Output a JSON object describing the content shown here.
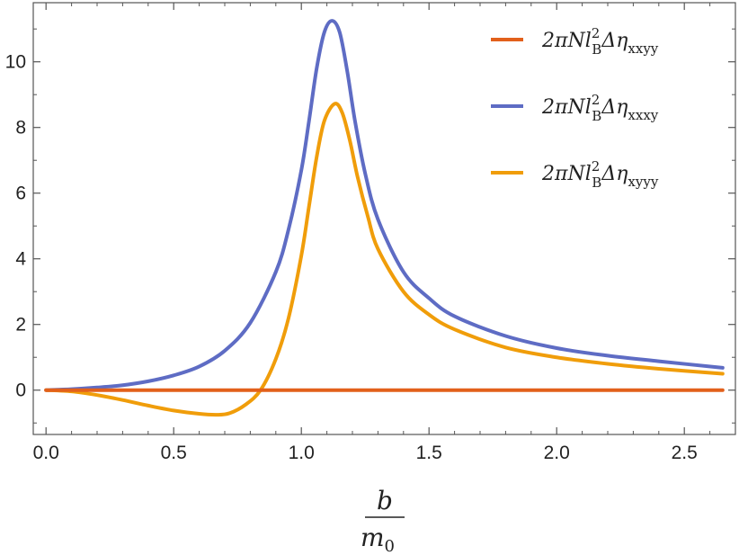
{
  "chart_data": {
    "type": "line",
    "xlabel": {
      "numerator": "b",
      "denominator_base": "m",
      "denominator_sub": "0"
    },
    "ylabel": "",
    "xlim": [
      -0.05,
      2.7
    ],
    "ylim": [
      -1.35,
      11.8
    ],
    "x_ticks": [
      0.0,
      0.5,
      1.0,
      1.5,
      2.0,
      2.5
    ],
    "x_tick_labels": [
      "0.0",
      "0.5",
      "1.0",
      "1.5",
      "2.0",
      "2.5"
    ],
    "y_ticks": [
      0,
      2,
      4,
      6,
      8,
      10
    ],
    "y_tick_labels": [
      "0",
      "2",
      "4",
      "6",
      "8",
      "10"
    ],
    "grid": false,
    "legend_position": "top-right",
    "series": [
      {
        "name": "2πNl_B^2Δη_xxyy",
        "legend": {
          "main": "2πNl",
          "sup": "2",
          "sub_B": "B",
          "eta": "Δη",
          "sub": "xxyy"
        },
        "color": "#e2601b",
        "x": [
          0.0,
          0.5,
          1.0,
          1.5,
          2.0,
          2.5,
          2.65
        ],
        "y": [
          0,
          0,
          0,
          0,
          0,
          0,
          0
        ]
      },
      {
        "name": "2πNl_B^2Δη_xxxy",
        "legend": {
          "main": "2πNl",
          "sup": "2",
          "sub_B": "B",
          "eta": "Δη",
          "sub": "xxxy"
        },
        "color": "#5e6cc4",
        "x": [
          0.0,
          0.1,
          0.2,
          0.3,
          0.4,
          0.5,
          0.6,
          0.7,
          0.8,
          0.9,
          0.95,
          1.0,
          1.03,
          1.06,
          1.09,
          1.12,
          1.15,
          1.18,
          1.21,
          1.25,
          1.3,
          1.4,
          1.5,
          1.6,
          1.8,
          2.0,
          2.2,
          2.4,
          2.65
        ],
        "y": [
          0,
          0.03,
          0.08,
          0.15,
          0.27,
          0.45,
          0.72,
          1.2,
          2.05,
          3.6,
          4.9,
          6.7,
          8.2,
          9.8,
          10.9,
          11.25,
          10.9,
          9.7,
          8.2,
          6.6,
          5.2,
          3.6,
          2.8,
          2.25,
          1.65,
          1.28,
          1.05,
          0.88,
          0.68
        ]
      },
      {
        "name": "2πNl_B^2Δη_xyyy",
        "legend": {
          "main": "2πNl",
          "sup": "2",
          "sub_B": "B",
          "eta": "Δη",
          "sub": "xyyy"
        },
        "color": "#f09d0a",
        "x": [
          0.0,
          0.1,
          0.2,
          0.3,
          0.4,
          0.5,
          0.6,
          0.67,
          0.72,
          0.78,
          0.84,
          0.9,
          0.95,
          1.0,
          1.03,
          1.06,
          1.09,
          1.13,
          1.16,
          1.19,
          1.22,
          1.26,
          1.3,
          1.4,
          1.5,
          1.6,
          1.8,
          2.0,
          2.2,
          2.4,
          2.65
        ],
        "y": [
          0,
          -0.04,
          -0.15,
          -0.3,
          -0.47,
          -0.62,
          -0.72,
          -0.75,
          -0.7,
          -0.45,
          0.0,
          0.95,
          2.2,
          4.1,
          5.6,
          7.1,
          8.2,
          8.72,
          8.45,
          7.6,
          6.5,
          5.3,
          4.3,
          3.0,
          2.3,
          1.85,
          1.3,
          1.0,
          0.8,
          0.65,
          0.5
        ]
      }
    ]
  }
}
